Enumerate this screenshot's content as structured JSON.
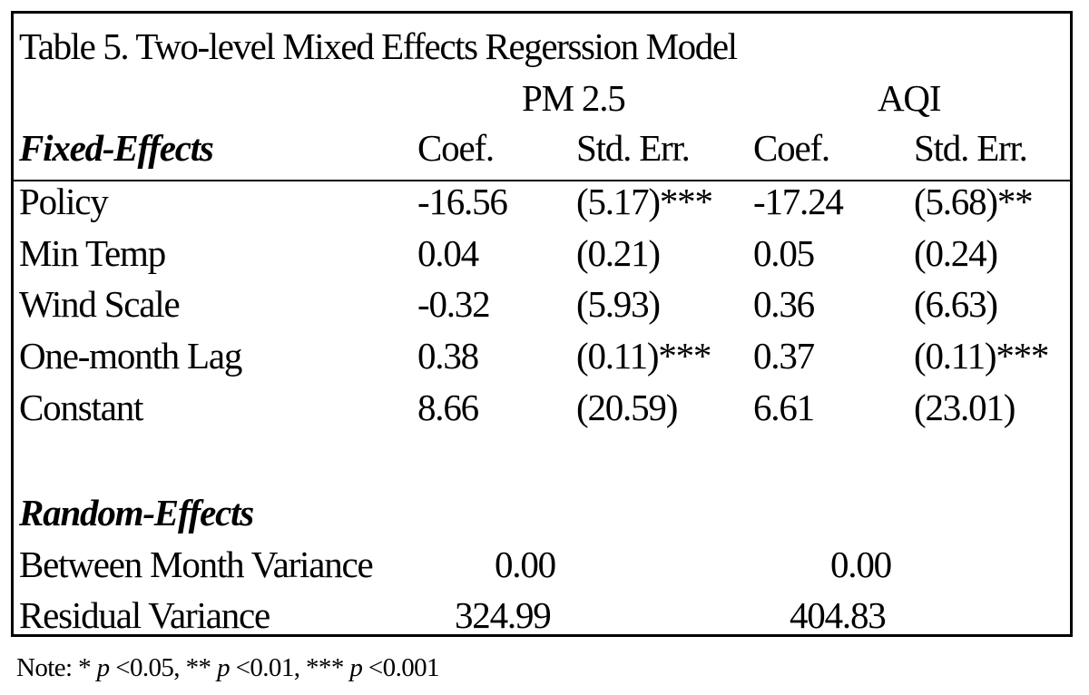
{
  "table": {
    "title": "Table 5. Two-level Mixed Effects Regerssion Model",
    "groups": [
      "PM 2.5",
      "AQI"
    ],
    "fixed_header": "Fixed-Effects",
    "columns": [
      "Coef.",
      "Std. Err.",
      "Coef.",
      "Std. Err."
    ],
    "fixed_rows": [
      {
        "label": "Policy",
        "pm_coef": "-16.56",
        "pm_se": "(5.17)***",
        "aqi_coef": "-17.24",
        "aqi_se": "(5.68)**"
      },
      {
        "label": "Min Temp",
        "pm_coef": "0.04",
        "pm_se": "(0.21)",
        "aqi_coef": "0.05",
        "aqi_se": "(0.24)"
      },
      {
        "label": "Wind Scale",
        "pm_coef": "-0.32",
        "pm_se": "(5.93)",
        "aqi_coef": "0.36",
        "aqi_se": "(6.63)"
      },
      {
        "label": "One-month Lag",
        "pm_coef": "0.38",
        "pm_se": "(0.11)***",
        "aqi_coef": "0.37",
        "aqi_se": "(0.11)***"
      },
      {
        "label": "Constant",
        "pm_coef": "8.66",
        "pm_se": "(20.59)",
        "aqi_coef": "6.61",
        "aqi_se": "(23.01)"
      }
    ],
    "random_header": "Random-Effects",
    "random_rows": [
      {
        "label": "Between Month Variance",
        "pm": "0.00",
        "aqi": "0.00"
      },
      {
        "label": "Residual Variance",
        "pm": "324.99",
        "aqi": "404.83"
      }
    ]
  },
  "note": {
    "prefix": "Note: * ",
    "p": "p",
    "t1": " <0.05, ** ",
    "t2": " <0.01, *** ",
    "t3": " <0.001"
  }
}
